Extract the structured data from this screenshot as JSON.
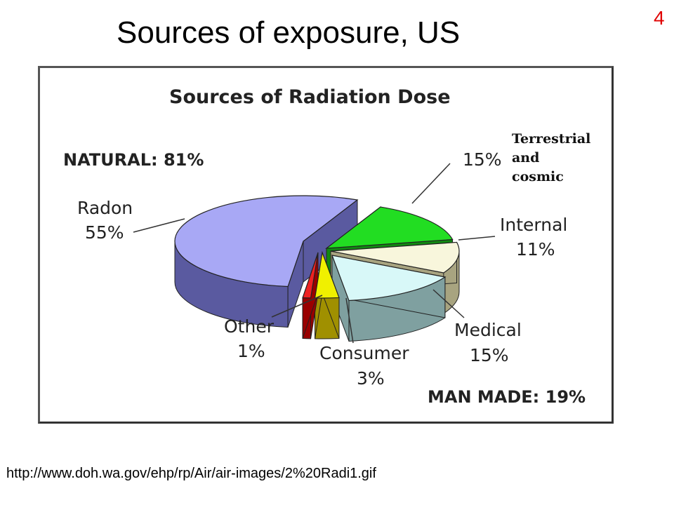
{
  "slide": {
    "title": "Sources of exposure, US",
    "page_number": "4",
    "source_url": "http://www.doh.wa.gov/ehp/rp/Air/air-images/2%20Radi1.gif"
  },
  "chart_data": {
    "type": "pie",
    "title": "Sources of Radiation Dose",
    "groups": [
      {
        "label": "NATURAL: 81%",
        "value": 81
      },
      {
        "label": "MAN MADE: 19%",
        "value": 19
      }
    ],
    "slices": [
      {
        "name": "Radon",
        "value": 55,
        "pct_label": "55%",
        "color": "#a8a8f5",
        "side": "#5a5aa0"
      },
      {
        "name": "Terrestrial and cosmic",
        "value": 15,
        "pct_label": "15%",
        "color": "#22dd22",
        "side": "#118811"
      },
      {
        "name": "Internal",
        "value": 11,
        "pct_label": "11%",
        "color": "#f8f6dc",
        "side": "#a8a480"
      },
      {
        "name": "Medical",
        "value": 15,
        "pct_label": "15%",
        "color": "#d8f8f8",
        "side": "#7fa0a0"
      },
      {
        "name": "Consumer",
        "value": 3,
        "pct_label": "3%",
        "color": "#f0f000",
        "side": "#a09000"
      },
      {
        "name": "Other",
        "value": 1,
        "pct_label": "1%",
        "color": "#ee2222",
        "side": "#990000"
      }
    ],
    "legend_text": {
      "radon": {
        "line1": "Radon",
        "line2": "55%"
      },
      "terrestrial": {
        "line1": "Terrestrial",
        "line2": "and",
        "line3": "cosmic",
        "pct": "15%"
      },
      "internal": {
        "line1": "Internal",
        "line2": "11%"
      },
      "medical": {
        "line1": "Medical",
        "line2": "15%"
      },
      "consumer": {
        "line1": "Consumer",
        "line2": "3%"
      },
      "other": {
        "line1": "Other",
        "line2": "1%"
      }
    }
  }
}
